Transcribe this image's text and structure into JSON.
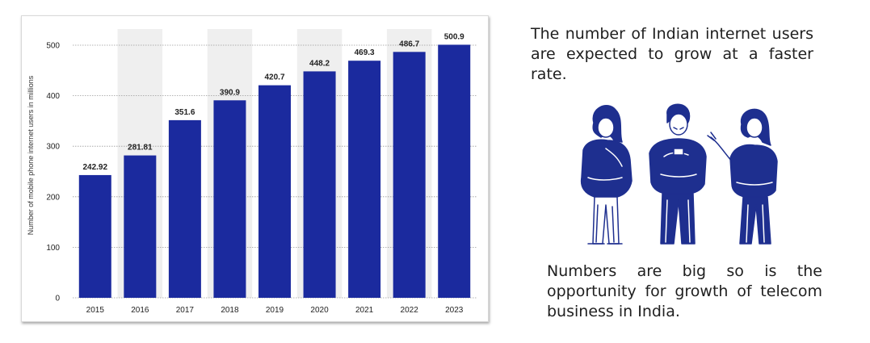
{
  "chart_data": {
    "type": "bar",
    "categories": [
      "2015",
      "2016",
      "2017",
      "2018",
      "2019",
      "2020",
      "2021",
      "2022",
      "2023"
    ],
    "values": [
      242.92,
      281.81,
      351.6,
      390.9,
      420.7,
      448.2,
      469.3,
      486.7,
      500.9
    ],
    "value_labels": [
      "242.92",
      "281.81",
      "351.6",
      "390.9",
      "420.7",
      "448.2",
      "469.3",
      "486.7",
      "500.9"
    ],
    "ylabel": "Number of mobile phone internet users in millions",
    "xlabel": "",
    "ylim": [
      0,
      500
    ],
    "yticks": [
      0,
      100,
      200,
      300,
      400,
      500
    ],
    "grid": true,
    "bar_color": "#1b2a9e",
    "alternating_band_color": "#efefef"
  },
  "text": {
    "top": "The number of Indian internet users are expected to grow at a faster rate.",
    "bottom": "Numbers are big so is the opportunity for growth of telecom business in India."
  },
  "illustration": {
    "icon": "three-people-with-phones-icon",
    "color": "#1e2f8f"
  }
}
